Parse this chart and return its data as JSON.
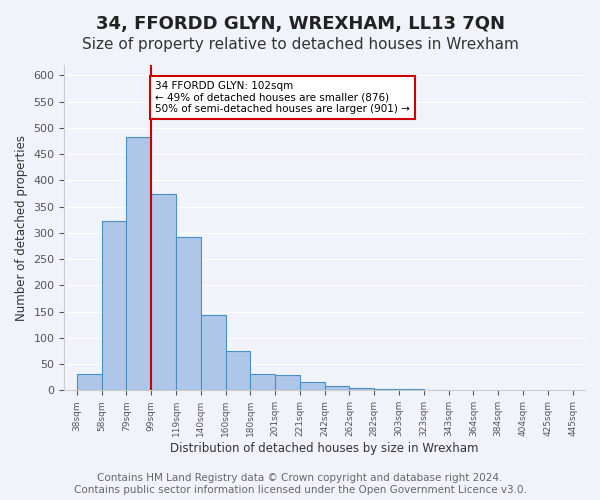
{
  "title": "34, FFORDD GLYN, WREXHAM, LL13 7QN",
  "subtitle": "Size of property relative to detached houses in Wrexham",
  "xlabel": "Distribution of detached houses by size in Wrexham",
  "ylabel": "Number of detached properties",
  "bar_values": [
    32,
    322,
    483,
    375,
    292,
    144,
    75,
    32,
    29,
    16,
    8,
    5,
    3,
    2,
    1
  ],
  "all_labels": [
    "38sqm",
    "58sqm",
    "79sqm",
    "99sqm",
    "119sqm",
    "140sqm",
    "160sqm",
    "180sqm",
    "201sqm",
    "221sqm",
    "242sqm",
    "262sqm",
    "282sqm",
    "303sqm",
    "323sqm",
    "343sqm",
    "364sqm",
    "384sqm",
    "404sqm",
    "425sqm",
    "445sqm"
  ],
  "bar_color": "#aec6e8",
  "bar_edge_color": "#4a90c4",
  "background_color": "#f0f4fa",
  "grid_color": "#ffffff",
  "vline_x": 3,
  "vline_color": "#cc0000",
  "annotation_text": "34 FFORDD GLYN: 102sqm\n← 49% of detached houses are smaller (876)\n50% of semi-detached houses are larger (901) →",
  "annotation_box_color": "#ffffff",
  "annotation_box_edge": "#cc0000",
  "ylim": [
    0,
    620
  ],
  "yticks": [
    0,
    50,
    100,
    150,
    200,
    250,
    300,
    350,
    400,
    450,
    500,
    550,
    600
  ],
  "footer": "Contains HM Land Registry data © Crown copyright and database right 2024.\nContains public sector information licensed under the Open Government Licence v3.0.",
  "title_fontsize": 13,
  "subtitle_fontsize": 11,
  "footer_fontsize": 7.5
}
